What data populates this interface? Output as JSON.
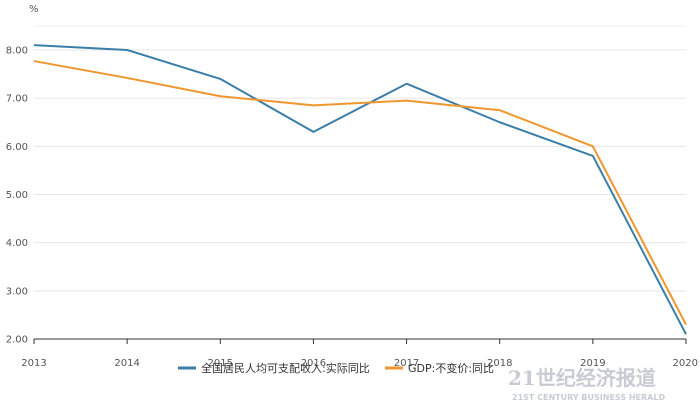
{
  "chart_data": {
    "type": "line",
    "ylabel": "%",
    "x": [
      "2013",
      "2014",
      "2015",
      "2016",
      "2017",
      "2018",
      "2019",
      "2020"
    ],
    "ylim": [
      2.0,
      8.0
    ],
    "yticks": [
      "2.00",
      "3.00",
      "4.00",
      "5.00",
      "6.00",
      "7.00",
      "8.00"
    ],
    "grid": true,
    "legend_position": "bottom",
    "series": [
      {
        "name": "全国居民人均可支配收入:实际同比",
        "color": "#3b7ea8",
        "values": [
          8.1,
          8.0,
          7.4,
          6.3,
          7.3,
          6.5,
          5.8,
          2.1
        ]
      },
      {
        "name": "GDP:不变价:同比",
        "color": "#f0962e",
        "values": [
          7.77,
          7.42,
          7.04,
          6.85,
          6.95,
          6.75,
          6.0,
          2.3
        ]
      }
    ]
  },
  "watermark": {
    "cn": "21世纪经济报道",
    "en": "21ST CENTURY BUSINESS HERALD"
  }
}
